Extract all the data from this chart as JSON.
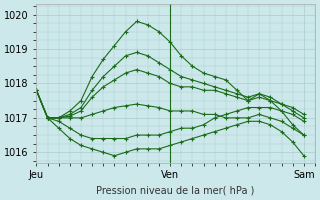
{
  "background_color": "#cce8ea",
  "grid_color": "#aacccc",
  "line_color": "#1a6b1a",
  "marker": "+",
  "marker_size": 3,
  "xlabel": "Pression niveau de la mer( hPa )",
  "ylim": [
    1015.7,
    1020.3
  ],
  "yticks": [
    1016,
    1017,
    1018,
    1019,
    1020
  ],
  "xtick_labels": [
    "Jeu",
    "Ven",
    "Sam"
  ],
  "xtick_positions": [
    0,
    48,
    96
  ],
  "xlim": [
    0,
    100
  ],
  "vertical_line_x": 48,
  "series": [
    {
      "x": [
        0,
        4,
        8,
        12,
        16,
        20,
        24,
        28,
        32,
        36,
        40,
        44,
        48,
        52,
        56,
        60,
        64,
        68,
        72,
        76,
        80,
        84,
        88,
        92,
        96
      ],
      "y": [
        1017.8,
        1017.0,
        1017.0,
        1017.2,
        1017.5,
        1018.2,
        1018.7,
        1019.1,
        1019.5,
        1019.8,
        1019.7,
        1019.5,
        1019.2,
        1018.8,
        1018.5,
        1018.3,
        1018.2,
        1018.1,
        1017.8,
        1017.5,
        1017.7,
        1017.5,
        1017.2,
        1016.8,
        1016.5
      ]
    },
    {
      "x": [
        0,
        4,
        8,
        12,
        16,
        20,
        24,
        28,
        32,
        36,
        40,
        44,
        48,
        52,
        56,
        60,
        64,
        68,
        72,
        76,
        80,
        84,
        88,
        92,
        96
      ],
      "y": [
        1017.8,
        1017.0,
        1017.0,
        1017.1,
        1017.3,
        1017.8,
        1018.2,
        1018.5,
        1018.8,
        1018.9,
        1018.8,
        1018.6,
        1018.4,
        1018.2,
        1018.1,
        1018.0,
        1017.9,
        1017.8,
        1017.7,
        1017.6,
        1017.7,
        1017.6,
        1017.4,
        1017.2,
        1017.0
      ]
    },
    {
      "x": [
        0,
        4,
        8,
        12,
        16,
        20,
        24,
        28,
        32,
        36,
        40,
        44,
        48,
        52,
        56,
        60,
        64,
        68,
        72,
        76,
        80,
        84,
        88,
        92,
        96
      ],
      "y": [
        1017.8,
        1017.0,
        1017.0,
        1017.05,
        1017.2,
        1017.6,
        1017.9,
        1018.1,
        1018.3,
        1018.4,
        1018.3,
        1018.2,
        1018.0,
        1017.9,
        1017.9,
        1017.8,
        1017.8,
        1017.7,
        1017.6,
        1017.5,
        1017.6,
        1017.5,
        1017.4,
        1017.3,
        1017.1
      ]
    },
    {
      "x": [
        0,
        4,
        8,
        12,
        16,
        20,
        24,
        28,
        32,
        36,
        40,
        44,
        48,
        52,
        56,
        60,
        64,
        68,
        72,
        76,
        80,
        84,
        88,
        92,
        96
      ],
      "y": [
        1017.8,
        1017.0,
        1017.0,
        1017.0,
        1017.0,
        1017.1,
        1017.2,
        1017.3,
        1017.35,
        1017.4,
        1017.35,
        1017.3,
        1017.2,
        1017.2,
        1017.2,
        1017.1,
        1017.1,
        1017.0,
        1017.0,
        1017.0,
        1017.1,
        1017.0,
        1016.9,
        1016.7,
        1016.5
      ]
    },
    {
      "x": [
        0,
        4,
        8,
        12,
        16,
        20,
        24,
        28,
        32,
        36,
        40,
        44,
        48,
        52,
        56,
        60,
        64,
        68,
        72,
        76,
        80,
        84,
        88,
        92,
        96
      ],
      "y": [
        1017.8,
        1017.0,
        1016.9,
        1016.7,
        1016.5,
        1016.4,
        1016.4,
        1016.4,
        1016.4,
        1016.5,
        1016.5,
        1016.5,
        1016.6,
        1016.7,
        1016.7,
        1016.8,
        1017.0,
        1017.1,
        1017.2,
        1017.3,
        1017.3,
        1017.3,
        1017.2,
        1017.1,
        1016.9
      ]
    },
    {
      "x": [
        0,
        4,
        8,
        12,
        16,
        20,
        24,
        28,
        32,
        36,
        40,
        44,
        48,
        52,
        56,
        60,
        64,
        68,
        72,
        76,
        80,
        84,
        88,
        92,
        96
      ],
      "y": [
        1017.8,
        1017.0,
        1016.7,
        1016.4,
        1016.2,
        1016.1,
        1016.0,
        1015.9,
        1016.0,
        1016.1,
        1016.1,
        1016.1,
        1016.2,
        1016.3,
        1016.4,
        1016.5,
        1016.6,
        1016.7,
        1016.8,
        1016.9,
        1016.9,
        1016.8,
        1016.6,
        1016.3,
        1015.9
      ]
    }
  ]
}
